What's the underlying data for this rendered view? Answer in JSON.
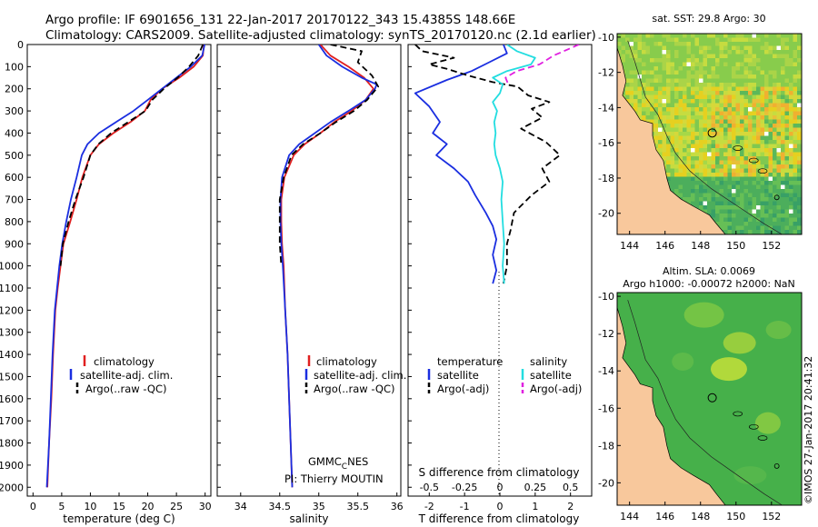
{
  "header": {
    "title_line1": "Argo profile: IF 6901656_131 22-Jan-2017 20170122_343 15.4385S 148.66E",
    "title_line2": "Climatology: CARS2009. Satellite-adjusted climatology: synTS_20170120.nc (2.1d earlier)"
  },
  "credits": {
    "gmmc_main": "GMMC",
    "gmmc_sub": "C",
    "gmmc_tail": "NES",
    "pi": "PI: Thierry MOUTIN",
    "imos": "©IMOS 27-Jan-2017 20:41:32"
  },
  "colors": {
    "climatology": "#e02020",
    "satellite": "#1a2ee0",
    "argo": "#000000",
    "sat_salinity": "#22dde0",
    "argo_salinity": "#e020e0",
    "land": "#f8c89c"
  },
  "chart_data": [
    {
      "id": "temperature",
      "type": "line",
      "xlabel": "temperature (deg C)",
      "xlim": [
        -1,
        31
      ],
      "xticks": [
        0,
        5,
        10,
        15,
        20,
        25,
        30
      ],
      "ylim": [
        2040,
        0
      ],
      "yticks": [
        0,
        100,
        200,
        300,
        400,
        500,
        600,
        700,
        800,
        900,
        1000,
        1100,
        1200,
        1300,
        1400,
        1500,
        1600,
        1700,
        1800,
        1900,
        2000
      ],
      "legend": [
        "climatology",
        "satellite-adj. clim.",
        "Argo(..raw -QC)"
      ],
      "series": [
        {
          "name": "climatology",
          "color": "#e02020",
          "dash": "",
          "points": [
            [
              29.8,
              0
            ],
            [
              29.6,
              50
            ],
            [
              28,
              100
            ],
            [
              25.5,
              150
            ],
            [
              22.5,
              200
            ],
            [
              20.5,
              250
            ],
            [
              19.5,
              300
            ],
            [
              17,
              350
            ],
            [
              14,
              400
            ],
            [
              11.5,
              450
            ],
            [
              10,
              500
            ],
            [
              8.6,
              600
            ],
            [
              7.6,
              700
            ],
            [
              6.5,
              800
            ],
            [
              5.3,
              900
            ],
            [
              4.8,
              1000
            ],
            [
              4.3,
              1100
            ],
            [
              3.9,
              1200
            ],
            [
              3.5,
              1400
            ],
            [
              3.2,
              1600
            ],
            [
              2.8,
              1800
            ],
            [
              2.5,
              2000
            ]
          ]
        },
        {
          "name": "satellite-adj. clim.",
          "color": "#1a2ee0",
          "dash": "",
          "points": [
            [
              29.9,
              0
            ],
            [
              29.5,
              50
            ],
            [
              27.5,
              100
            ],
            [
              25,
              150
            ],
            [
              22.5,
              200
            ],
            [
              20,
              250
            ],
            [
              17.5,
              300
            ],
            [
              14.5,
              350
            ],
            [
              11.5,
              400
            ],
            [
              9.5,
              450
            ],
            [
              8.5,
              500
            ],
            [
              7.6,
              600
            ],
            [
              6.6,
              700
            ],
            [
              5.8,
              800
            ],
            [
              5.1,
              900
            ],
            [
              4.6,
              1000
            ],
            [
              4.2,
              1100
            ],
            [
              3.8,
              1200
            ],
            [
              3.4,
              1400
            ],
            [
              3.1,
              1600
            ],
            [
              2.8,
              1800
            ],
            [
              2.4,
              2000
            ]
          ]
        },
        {
          "name": "Argo(..raw -QC)",
          "color": "#000000",
          "dash": "7,4",
          "points": [
            [
              29.6,
              0
            ],
            [
              28.8,
              50
            ],
            [
              27.2,
              100
            ],
            [
              25.2,
              150
            ],
            [
              22.8,
              200
            ],
            [
              20.8,
              250
            ],
            [
              19.6,
              300
            ],
            [
              16.6,
              350
            ],
            [
              13.6,
              400
            ],
            [
              11.4,
              450
            ],
            [
              10,
              500
            ],
            [
              8.8,
              600
            ],
            [
              7.4,
              700
            ],
            [
              6.2,
              800
            ],
            [
              5.2,
              900
            ],
            [
              4.8,
              1000
            ]
          ]
        }
      ]
    },
    {
      "id": "salinity",
      "type": "line",
      "xlabel": "salinity",
      "xlim": [
        33.7,
        36.05
      ],
      "xticks": [
        34,
        34.5,
        35,
        35.5,
        36
      ],
      "xtick_labels": [
        "34",
        "34.5",
        "35",
        "35.5",
        "36"
      ],
      "ylim": [
        2040,
        0
      ],
      "legend": [
        "climatology",
        "satellite-adj. clim.",
        "Argo(..raw -QC)"
      ],
      "series": [
        {
          "name": "climatology",
          "color": "#e02020",
          "dash": "",
          "points": [
            [
              35.02,
              0
            ],
            [
              35.15,
              50
            ],
            [
              35.38,
              100
            ],
            [
              35.58,
              150
            ],
            [
              35.7,
              200
            ],
            [
              35.6,
              250
            ],
            [
              35.42,
              300
            ],
            [
              35.2,
              350
            ],
            [
              35.02,
              400
            ],
            [
              34.82,
              450
            ],
            [
              34.68,
              500
            ],
            [
              34.56,
              600
            ],
            [
              34.52,
              700
            ],
            [
              34.52,
              800
            ],
            [
              34.53,
              900
            ],
            [
              34.55,
              1000
            ],
            [
              34.57,
              1200
            ],
            [
              34.6,
              1400
            ],
            [
              34.62,
              1600
            ],
            [
              34.64,
              1800
            ],
            [
              34.66,
              2000
            ]
          ]
        },
        {
          "name": "satellite-adj. clim.",
          "color": "#1a2ee0",
          "dash": "",
          "points": [
            [
              35.0,
              0
            ],
            [
              35.1,
              50
            ],
            [
              35.3,
              100
            ],
            [
              35.55,
              150
            ],
            [
              35.74,
              180
            ],
            [
              35.72,
              200
            ],
            [
              35.6,
              250
            ],
            [
              35.38,
              300
            ],
            [
              35.15,
              350
            ],
            [
              34.95,
              400
            ],
            [
              34.75,
              450
            ],
            [
              34.62,
              500
            ],
            [
              34.53,
              600
            ],
            [
              34.51,
              700
            ],
            [
              34.51,
              800
            ],
            [
              34.52,
              900
            ],
            [
              34.54,
              1000
            ],
            [
              34.57,
              1200
            ],
            [
              34.6,
              1400
            ],
            [
              34.62,
              1600
            ],
            [
              34.64,
              1800
            ],
            [
              34.66,
              2000
            ]
          ]
        },
        {
          "name": "Argo(..raw -QC)",
          "color": "#000000",
          "dash": "7,4",
          "points": [
            [
              35.15,
              0
            ],
            [
              35.55,
              30
            ],
            [
              35.5,
              80
            ],
            [
              35.68,
              140
            ],
            [
              35.76,
              190
            ],
            [
              35.62,
              250
            ],
            [
              35.45,
              300
            ],
            [
              35.22,
              350
            ],
            [
              35.02,
              400
            ],
            [
              34.8,
              450
            ],
            [
              34.65,
              500
            ],
            [
              34.55,
              600
            ],
            [
              34.5,
              700
            ],
            [
              34.5,
              800
            ],
            [
              34.5,
              900
            ],
            [
              34.52,
              1000
            ]
          ]
        }
      ]
    },
    {
      "id": "difference",
      "type": "line",
      "xlabel": "T difference from climatology",
      "xlabel_top": "S difference from climatology",
      "xlim": [
        -2.6,
        2.6
      ],
      "xticks": [
        -2,
        -1,
        0,
        1,
        2
      ],
      "top_ticks": [
        -0.5,
        -0.25,
        0,
        0.25,
        0.5
      ],
      "top_tick_labels": [
        "-0.5",
        "-0.25",
        "0",
        "0.25",
        "0.5"
      ],
      "ylim": [
        2040,
        0
      ],
      "legend_left_title": "temperature",
      "legend_right_title": "salinity",
      "legend_left": [
        "satellite",
        "Argo(-adj)"
      ],
      "legend_right": [
        "satellite",
        "Argo(-adj)"
      ],
      "series": [
        {
          "name": "T satellite",
          "color": "#1a2ee0",
          "dash": "",
          "points": [
            [
              0.1,
              0
            ],
            [
              0.2,
              40
            ],
            [
              -0.3,
              80
            ],
            [
              -0.8,
              120
            ],
            [
              -1.5,
              160
            ],
            [
              -2.4,
              220
            ],
            [
              -2.0,
              280
            ],
            [
              -1.7,
              350
            ],
            [
              -1.9,
              400
            ],
            [
              -1.5,
              450
            ],
            [
              -1.8,
              500
            ],
            [
              -1.3,
              560
            ],
            [
              -0.9,
              620
            ],
            [
              -0.7,
              680
            ],
            [
              -0.4,
              760
            ],
            [
              -0.2,
              820
            ],
            [
              -0.1,
              880
            ],
            [
              -0.2,
              950
            ],
            [
              -0.1,
              1020
            ],
            [
              -0.2,
              1080
            ]
          ]
        },
        {
          "name": "T Argo(-adj)",
          "color": "#000000",
          "dash": "7,4",
          "points": [
            [
              -2.4,
              0
            ],
            [
              -2.2,
              30
            ],
            [
              -1.3,
              60
            ],
            [
              -2.0,
              90
            ],
            [
              -1.5,
              110
            ],
            [
              -0.9,
              140
            ],
            [
              -0.2,
              170
            ],
            [
              0.5,
              190
            ],
            [
              0.8,
              230
            ],
            [
              1.4,
              260
            ],
            [
              0.9,
              290
            ],
            [
              1.2,
              330
            ],
            [
              0.6,
              380
            ],
            [
              1.3,
              440
            ],
            [
              1.7,
              500
            ],
            [
              1.2,
              560
            ],
            [
              1.4,
              620
            ],
            [
              0.9,
              680
            ],
            [
              0.4,
              760
            ],
            [
              0.3,
              840
            ],
            [
              0.2,
              900
            ],
            [
              0.2,
              1000
            ],
            [
              0.1,
              1080
            ]
          ]
        },
        {
          "name": "S satellite",
          "color": "#22dde0",
          "dash": "",
          "points": [
            [
              0.05,
              0
            ],
            [
              0.12,
              30
            ],
            [
              0.25,
              60
            ],
            [
              0.22,
              90
            ],
            [
              0.05,
              120
            ],
            [
              -0.05,
              150
            ],
            [
              0.02,
              180
            ],
            [
              0.0,
              220
            ],
            [
              -0.05,
              260
            ],
            [
              -0.02,
              300
            ],
            [
              -0.04,
              350
            ],
            [
              -0.03,
              400
            ],
            [
              -0.04,
              450
            ],
            [
              -0.03,
              500
            ],
            [
              0.0,
              560
            ],
            [
              0.02,
              620
            ],
            [
              0.01,
              700
            ],
            [
              0.02,
              800
            ],
            [
              0.03,
              900
            ],
            [
              0.02,
              1000
            ],
            [
              0.03,
              1080
            ]
          ]
        },
        {
          "name": "S Argo(-adj)",
          "color": "#e020e0",
          "dash": "7,4",
          "points": [
            [
              0.56,
              0
            ],
            [
              0.38,
              50
            ],
            [
              0.28,
              90
            ],
            [
              0.12,
              120
            ],
            [
              0.04,
              150
            ],
            [
              0.06,
              180
            ]
          ]
        }
      ]
    },
    {
      "id": "sst_map",
      "type": "heatmap",
      "title": "sat. SST: 29.8 Argo: 30",
      "xticks": [
        144,
        146,
        148,
        150,
        152
      ],
      "yticks": [
        -10,
        -12,
        -14,
        -16,
        -18,
        -20
      ],
      "xlim": [
        143.3,
        153.7
      ],
      "ylim": [
        -21.2,
        -9.8
      ],
      "argo_position": [
        148.66,
        -15.44
      ]
    },
    {
      "id": "sla_map",
      "type": "heatmap",
      "title": "Altim. SLA: 0.0069",
      "subtitle": "Argo h1000: -0.00072 h2000: NaN",
      "xticks": [
        144,
        146,
        148,
        150,
        152
      ],
      "yticks": [
        -10,
        -12,
        -14,
        -16,
        -18,
        -20
      ],
      "xlim": [
        143.3,
        153.7
      ],
      "ylim": [
        -21.2,
        -9.8
      ],
      "argo_position": [
        148.66,
        -15.44
      ]
    }
  ]
}
